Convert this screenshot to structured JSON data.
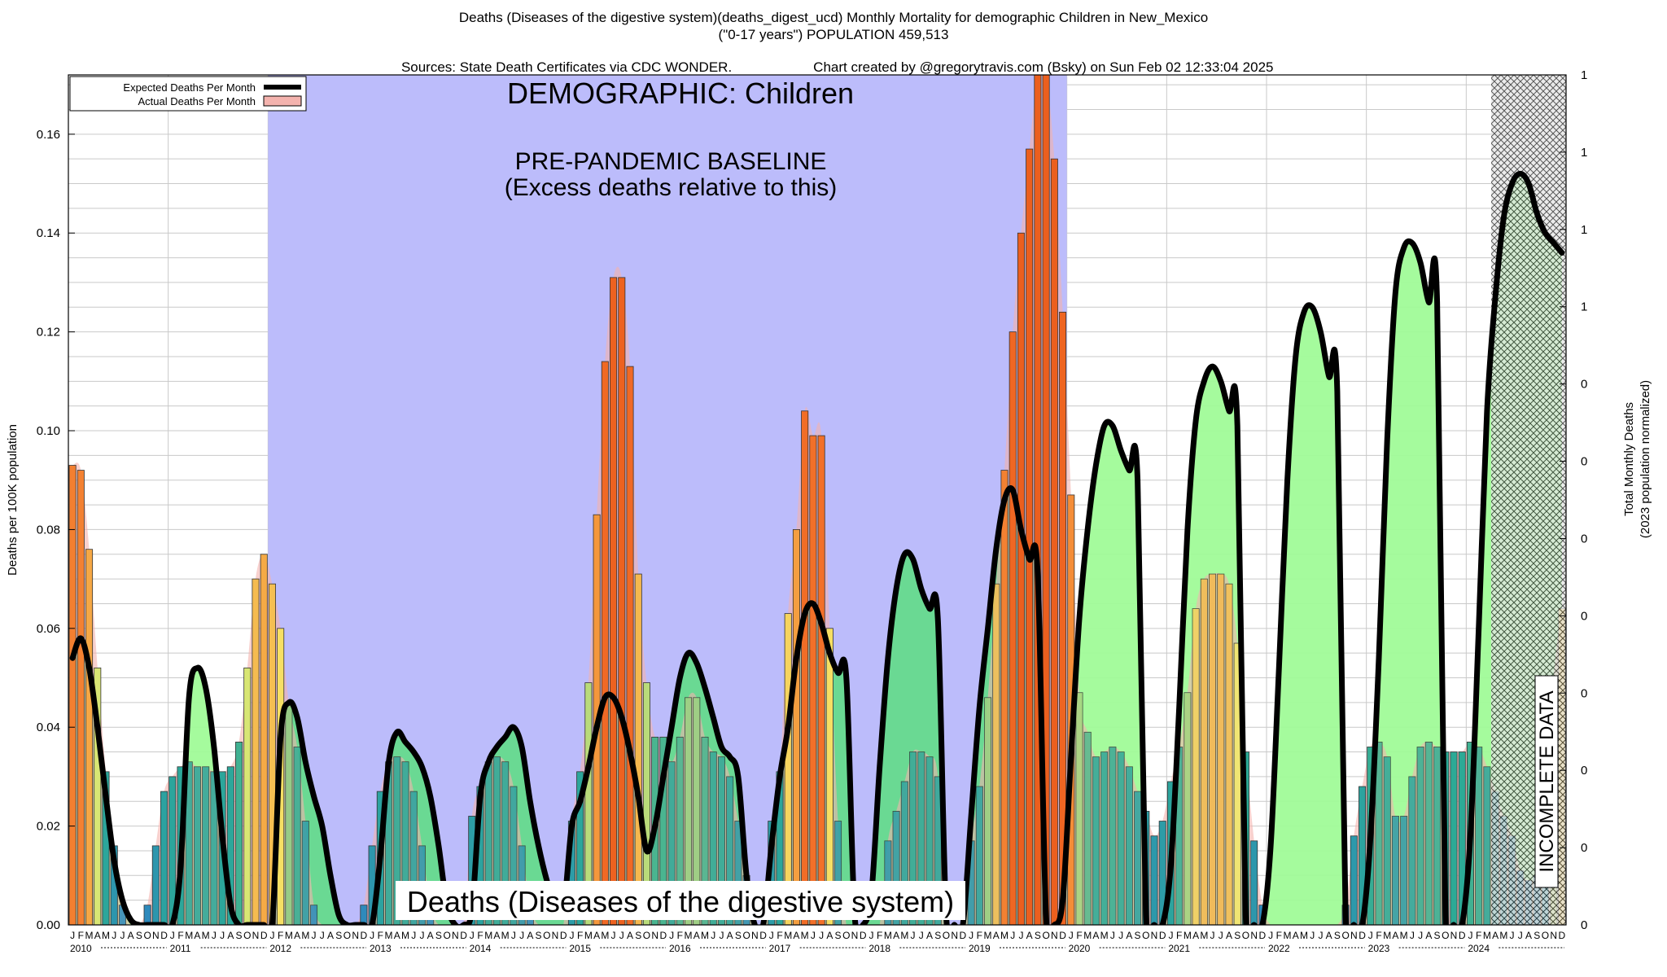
{
  "header": {
    "title_line1": "Deaths (Diseases of the digestive system)(deaths_digest_ucd) Monthly Mortality for demographic Children in New_Mexico",
    "title_line2": "(\"0-17 years\") POPULATION 459,513",
    "sources": "Sources: State Death Certificates via CDC WONDER.",
    "credit": "Chart created by @gregorytravis.com (Bsky) on Sun Feb 02 12:33:04 2025"
  },
  "chart_data": {
    "type": "bar",
    "title": "Deaths (Diseases of the digestive system)(deaths_digest_ucd) Monthly Mortality for demographic Children in New_Mexico",
    "ylabel": "Deaths per 100K population",
    "y2label_line1": "Total Monthly Deaths",
    "y2label_line2": "(2023 population normalized)",
    "ylim": [
      0,
      0.172
    ],
    "yticks": [
      "0.00",
      "0.02",
      "0.04",
      "0.06",
      "0.08",
      "0.10",
      "0.12",
      "0.14",
      "0.16"
    ],
    "y2ticks": [
      "0",
      "0",
      "0",
      "0",
      "0",
      "0",
      "0",
      "0",
      "1",
      "1",
      "1",
      "1"
    ],
    "grid": true,
    "years": [
      "2010",
      "2011",
      "2012",
      "2013",
      "2014",
      "2015",
      "2016",
      "2017",
      "2018",
      "2019",
      "2020",
      "2021",
      "2022",
      "2023",
      "2024"
    ],
    "month_letters": [
      "J",
      "F",
      "M",
      "A",
      "M",
      "J",
      "J",
      "A",
      "S",
      "O",
      "N",
      "D"
    ],
    "legend": {
      "position": "top-left",
      "expected_label": "Expected Deaths Per Month",
      "actual_label": "Actual Deaths Per Month"
    },
    "annotations": {
      "demographic": "DEMOGRAPHIC: Children",
      "baseline_line1": "PRE-PANDEMIC BASELINE",
      "baseline_line2": "(Excess deaths relative to this)",
      "cause_label": "Deaths (Diseases of the digestive system)",
      "incomplete": "INCOMPLETE DATA"
    },
    "baseline_period": [
      "2012-01",
      "2019-12"
    ],
    "incomplete_period": [
      "2024-04",
      "2024-12"
    ],
    "series": [
      {
        "name": "Actual Deaths Per Month",
        "values": [
          0.093,
          0.092,
          0.076,
          0.052,
          0.031,
          0.016,
          0.004,
          0,
          0,
          0.004,
          0.016,
          0.027,
          0.03,
          0.032,
          0.033,
          0.032,
          0.032,
          0.031,
          0.031,
          0.032,
          0.037,
          0.052,
          0.07,
          0.075,
          0.069,
          0.06,
          0.045,
          0.036,
          0.021,
          0.004,
          0,
          0,
          0,
          0,
          0,
          0.004,
          0.016,
          0.027,
          0.033,
          0.034,
          0.033,
          0.027,
          0.016,
          0.004,
          0,
          0,
          0,
          0,
          0.022,
          0.028,
          0.033,
          0.034,
          0.033,
          0.028,
          0.016,
          0.004,
          0,
          0,
          0,
          0,
          0.021,
          0.031,
          0.049,
          0.083,
          0.114,
          0.131,
          0.131,
          0.113,
          0.071,
          0.049,
          0.038,
          0.038,
          0.033,
          0.038,
          0.046,
          0.046,
          0.038,
          0.035,
          0.034,
          0.03,
          0.021,
          0.01,
          0,
          0,
          0.021,
          0.031,
          0.063,
          0.08,
          0.104,
          0.099,
          0.099,
          0.06,
          0.021,
          0,
          0,
          0,
          0,
          0,
          0.017,
          0.023,
          0.029,
          0.035,
          0.035,
          0.034,
          0.03,
          0,
          0,
          0,
          0.017,
          0.028,
          0.046,
          0.069,
          0.092,
          0.12,
          0.14,
          0.157,
          0.172,
          0.177,
          0.155,
          0.124,
          0.087,
          0.047,
          0.039,
          0.034,
          0.035,
          0.036,
          0.035,
          0.032,
          0.027,
          0.023,
          0.018,
          0.021,
          0.029,
          0.036,
          0.047,
          0.064,
          0.07,
          0.071,
          0.071,
          0.069,
          0.057,
          0.035,
          0.017,
          0.004,
          0,
          0,
          0,
          0,
          0,
          0,
          0,
          0,
          0,
          0.004,
          0.018,
          0.028,
          0.036,
          0.037,
          0.034,
          0.022,
          0.022,
          0.03,
          0.036,
          0.037,
          0.036,
          0.035,
          0.035,
          0.035,
          0.037,
          0.036,
          0.032,
          0.027,
          0.022,
          0.018,
          0.011,
          0.009,
          0.01,
          0.018,
          0.05,
          0.064
        ]
      },
      {
        "name": "Expected Deaths Per Month",
        "values": [
          0.054,
          0.058,
          0.052,
          0.04,
          0.026,
          0.013,
          0.005,
          0.001,
          0,
          0,
          0,
          0,
          0,
          0.012,
          0.046,
          0.052,
          0.048,
          0.036,
          0.018,
          0.004,
          0,
          0,
          0,
          0,
          0,
          0.038,
          0.045,
          0.042,
          0.033,
          0.026,
          0.02,
          0.01,
          0.002,
          0,
          0,
          0,
          0,
          0.014,
          0.033,
          0.039,
          0.037,
          0.035,
          0.032,
          0.026,
          0.016,
          0.004,
          0,
          0,
          0.003,
          0.026,
          0.033,
          0.036,
          0.038,
          0.04,
          0.036,
          0.025,
          0.016,
          0.009,
          0.004,
          0.003,
          0.02,
          0.025,
          0.032,
          0.04,
          0.046,
          0.046,
          0.042,
          0.035,
          0.026,
          0.015,
          0.02,
          0.03,
          0.04,
          0.05,
          0.055,
          0.053,
          0.048,
          0.042,
          0.036,
          0.034,
          0.03,
          0.01,
          0,
          0,
          0.016,
          0.03,
          0.04,
          0.054,
          0.063,
          0.065,
          0.061,
          0.055,
          0.051,
          0.05,
          0.002,
          0,
          0.006,
          0.032,
          0.054,
          0.068,
          0.075,
          0.074,
          0.068,
          0.064,
          0.062,
          0.002,
          0,
          0,
          0.022,
          0.044,
          0.06,
          0.076,
          0.086,
          0.088,
          0.08,
          0.074,
          0.071,
          0.002,
          0,
          0.005,
          0.034,
          0.062,
          0.08,
          0.093,
          0.101,
          0.101,
          0.096,
          0.092,
          0.09,
          0.002,
          0,
          0,
          0.012,
          0.044,
          0.08,
          0.102,
          0.11,
          0.113,
          0.11,
          0.104,
          0.101,
          0.002,
          0,
          0,
          0.016,
          0.052,
          0.09,
          0.115,
          0.124,
          0.125,
          0.12,
          0.111,
          0.108,
          0.002,
          0,
          0,
          0.018,
          0.054,
          0.098,
          0.128,
          0.137,
          0.138,
          0.134,
          0.126,
          0.126,
          0.002,
          0,
          0,
          0.018,
          0.06,
          0.104,
          0.127,
          0.143,
          0.15,
          0.152,
          0.15,
          0.144,
          0.14,
          0.138,
          0.136
        ]
      }
    ]
  },
  "colors": {
    "baseline_fill": "#bcbcfb",
    "excess_fill": "#a0fb98",
    "expected_line": "#000000",
    "actual_legend": "#f4b3ae",
    "grid": "#c9c9c9",
    "cyan": "#40c4c8",
    "blue": "#2e86c1"
  }
}
